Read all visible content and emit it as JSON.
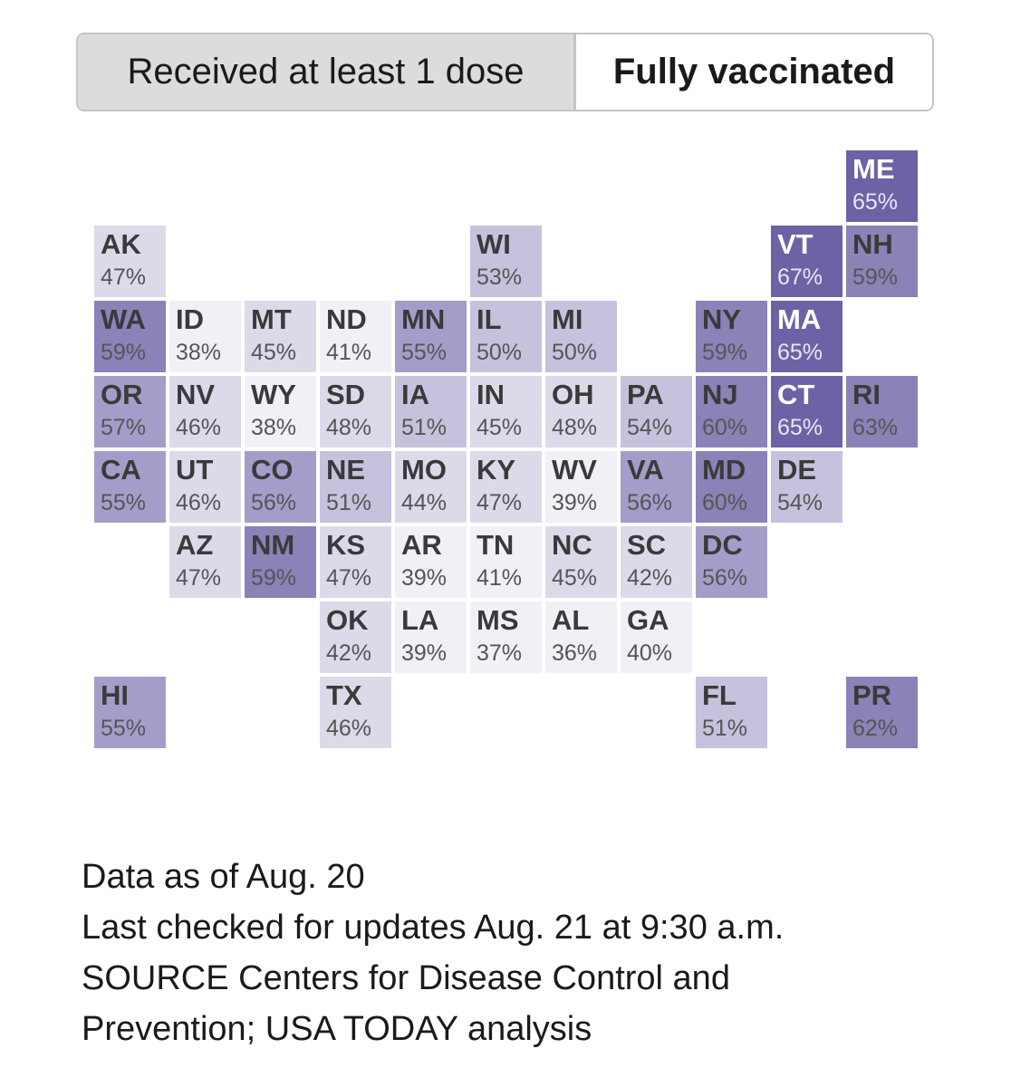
{
  "toggle": {
    "option_1": "Received at least 1 dose",
    "option_2": "Fully vaccinated",
    "selected": "Fully vaccinated"
  },
  "colors": {
    "scale": [
      "#f1f0f6",
      "#dcd9e9",
      "#c6c2dd",
      "#a59dc9",
      "#8b82b8",
      "#6e62a6"
    ],
    "text_dark": "#3a3a3a",
    "text_light": "#ffffff"
  },
  "chart_data": {
    "type": "tile-map",
    "values_unit": "%",
    "tiles": [
      {
        "state": "ME",
        "pct": "65%",
        "value": 65,
        "row": 0,
        "col": 10
      },
      {
        "state": "AK",
        "pct": "47%",
        "value": 47,
        "row": 1,
        "col": 0
      },
      {
        "state": "WI",
        "pct": "53%",
        "value": 53,
        "row": 1,
        "col": 5
      },
      {
        "state": "VT",
        "pct": "67%",
        "value": 67,
        "row": 1,
        "col": 9
      },
      {
        "state": "NH",
        "pct": "59%",
        "value": 59,
        "row": 1,
        "col": 10
      },
      {
        "state": "WA",
        "pct": "59%",
        "value": 59,
        "row": 2,
        "col": 0
      },
      {
        "state": "ID",
        "pct": "38%",
        "value": 38,
        "row": 2,
        "col": 1
      },
      {
        "state": "MT",
        "pct": "45%",
        "value": 45,
        "row": 2,
        "col": 2
      },
      {
        "state": "ND",
        "pct": "41%",
        "value": 41,
        "row": 2,
        "col": 3
      },
      {
        "state": "MN",
        "pct": "55%",
        "value": 55,
        "row": 2,
        "col": 4
      },
      {
        "state": "IL",
        "pct": "50%",
        "value": 50,
        "row": 2,
        "col": 5
      },
      {
        "state": "MI",
        "pct": "50%",
        "value": 50,
        "row": 2,
        "col": 6
      },
      {
        "state": "NY",
        "pct": "59%",
        "value": 59,
        "row": 2,
        "col": 8
      },
      {
        "state": "MA",
        "pct": "65%",
        "value": 65,
        "row": 2,
        "col": 9
      },
      {
        "state": "OR",
        "pct": "57%",
        "value": 57,
        "row": 3,
        "col": 0
      },
      {
        "state": "NV",
        "pct": "46%",
        "value": 46,
        "row": 3,
        "col": 1
      },
      {
        "state": "WY",
        "pct": "38%",
        "value": 38,
        "row": 3,
        "col": 2
      },
      {
        "state": "SD",
        "pct": "48%",
        "value": 48,
        "row": 3,
        "col": 3
      },
      {
        "state": "IA",
        "pct": "51%",
        "value": 51,
        "row": 3,
        "col": 4
      },
      {
        "state": "IN",
        "pct": "45%",
        "value": 45,
        "row": 3,
        "col": 5
      },
      {
        "state": "OH",
        "pct": "48%",
        "value": 48,
        "row": 3,
        "col": 6
      },
      {
        "state": "PA",
        "pct": "54%",
        "value": 54,
        "row": 3,
        "col": 7
      },
      {
        "state": "NJ",
        "pct": "60%",
        "value": 60,
        "row": 3,
        "col": 8
      },
      {
        "state": "CT",
        "pct": "65%",
        "value": 65,
        "row": 3,
        "col": 9
      },
      {
        "state": "RI",
        "pct": "63%",
        "value": 63,
        "row": 3,
        "col": 10
      },
      {
        "state": "CA",
        "pct": "55%",
        "value": 55,
        "row": 4,
        "col": 0
      },
      {
        "state": "UT",
        "pct": "46%",
        "value": 46,
        "row": 4,
        "col": 1
      },
      {
        "state": "CO",
        "pct": "56%",
        "value": 56,
        "row": 4,
        "col": 2
      },
      {
        "state": "NE",
        "pct": "51%",
        "value": 51,
        "row": 4,
        "col": 3
      },
      {
        "state": "MO",
        "pct": "44%",
        "value": 44,
        "row": 4,
        "col": 4
      },
      {
        "state": "KY",
        "pct": "47%",
        "value": 47,
        "row": 4,
        "col": 5
      },
      {
        "state": "WV",
        "pct": "39%",
        "value": 39,
        "row": 4,
        "col": 6
      },
      {
        "state": "VA",
        "pct": "56%",
        "value": 56,
        "row": 4,
        "col": 7
      },
      {
        "state": "MD",
        "pct": "60%",
        "value": 60,
        "row": 4,
        "col": 8
      },
      {
        "state": "DE",
        "pct": "54%",
        "value": 54,
        "row": 4,
        "col": 9
      },
      {
        "state": "AZ",
        "pct": "47%",
        "value": 47,
        "row": 5,
        "col": 1
      },
      {
        "state": "NM",
        "pct": "59%",
        "value": 59,
        "row": 5,
        "col": 2
      },
      {
        "state": "KS",
        "pct": "47%",
        "value": 47,
        "row": 5,
        "col": 3
      },
      {
        "state": "AR",
        "pct": "39%",
        "value": 39,
        "row": 5,
        "col": 4
      },
      {
        "state": "TN",
        "pct": "41%",
        "value": 41,
        "row": 5,
        "col": 5
      },
      {
        "state": "NC",
        "pct": "45%",
        "value": 45,
        "row": 5,
        "col": 6
      },
      {
        "state": "SC",
        "pct": "42%",
        "value": 42,
        "row": 5,
        "col": 7
      },
      {
        "state": "DC",
        "pct": "56%",
        "value": 56,
        "row": 5,
        "col": 8
      },
      {
        "state": "OK",
        "pct": "42%",
        "value": 42,
        "row": 6,
        "col": 3
      },
      {
        "state": "LA",
        "pct": "39%",
        "value": 39,
        "row": 6,
        "col": 4
      },
      {
        "state": "MS",
        "pct": "37%",
        "value": 37,
        "row": 6,
        "col": 5
      },
      {
        "state": "AL",
        "pct": "36%",
        "value": 36,
        "row": 6,
        "col": 6
      },
      {
        "state": "GA",
        "pct": "40%",
        "value": 40,
        "row": 6,
        "col": 7
      },
      {
        "state": "HI",
        "pct": "55%",
        "value": 55,
        "row": 7,
        "col": 0
      },
      {
        "state": "TX",
        "pct": "46%",
        "value": 46,
        "row": 7,
        "col": 3
      },
      {
        "state": "FL",
        "pct": "51%",
        "value": 51,
        "row": 7,
        "col": 8
      },
      {
        "state": "PR",
        "pct": "62%",
        "value": 62,
        "row": 7,
        "col": 10
      }
    ]
  },
  "notes": {
    "data_as_of": "Data as of Aug. 20",
    "last_checked": "Last checked for updates Aug. 21 at 9:30 a.m.",
    "source_line1": "SOURCE Centers for Disease Control and",
    "source_line2": "Prevention; USA TODAY analysis"
  }
}
